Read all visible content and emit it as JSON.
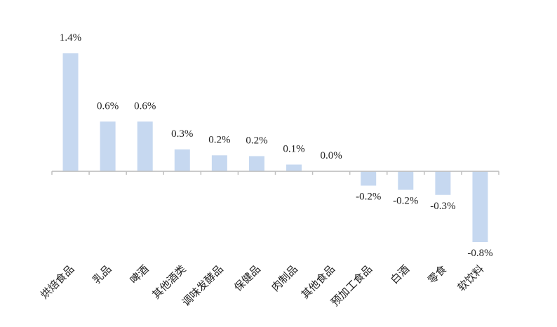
{
  "chart_data": {
    "type": "bar",
    "categories": [
      "烘焙食品",
      "乳品",
      "啤酒",
      "其他酒类",
      "调味发酵品",
      "保健品",
      "肉制品",
      "其他食品",
      "预加工食品",
      "白酒",
      "零食",
      "软饮料"
    ],
    "values": [
      1.4,
      0.59,
      0.59,
      0.26,
      0.19,
      0.18,
      0.08,
      0,
      -0.17,
      -0.22,
      -0.28,
      -0.84
    ],
    "value_labels": [
      "1.4%",
      "0.6%",
      "0.6%",
      "0.3%",
      "0.2%",
      "0.2%",
      "0.1%",
      "0.0%",
      "-0.2%",
      "-0.2%",
      "-0.3%",
      "-0.8%"
    ],
    "color": "#c6d8f0"
  }
}
